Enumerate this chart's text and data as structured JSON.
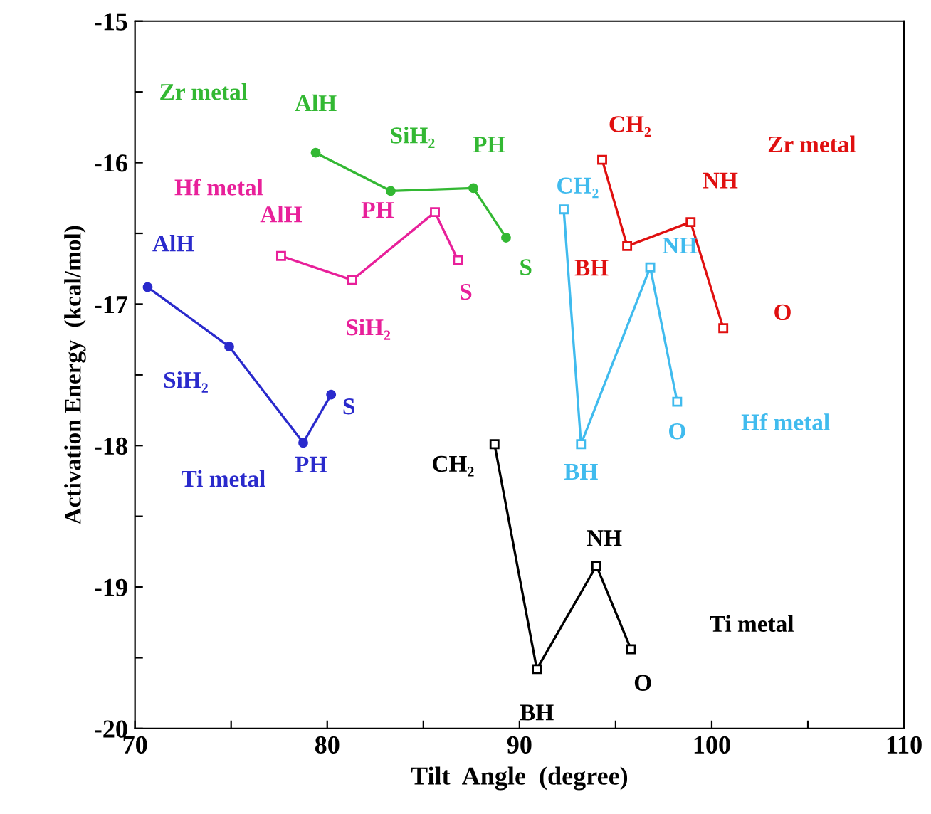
{
  "chart_data": {
    "type": "line",
    "xlabel": "Tilt  Angle  (degree)",
    "ylabel": "Activation Energy  (kcal/mol)",
    "xlim": [
      70,
      110
    ],
    "ylim": [
      -20,
      -15
    ],
    "xticks": [
      70,
      {
        "value": 75,
        "label": null
      },
      80,
      {
        "value": 85,
        "label": null
      },
      90,
      {
        "value": 95,
        "label": null
      },
      100,
      {
        "value": 105,
        "label": null
      },
      110
    ],
    "yticks": [
      -20,
      {
        "value": -19.5,
        "label": null
      },
      -19,
      {
        "value": -18.5,
        "label": null
      },
      -18,
      {
        "value": -17.5,
        "label": null
      },
      -17,
      {
        "value": -16.5,
        "label": null
      },
      -16,
      {
        "value": -15.5,
        "label": null
      },
      -15
    ],
    "grid": false,
    "legend": false,
    "series": [
      {
        "name": "Ti metal",
        "color": "#2a2acc",
        "marker": "circle",
        "x": [
          70.66,
          74.9,
          78.75,
          80.2
        ],
        "values": [
          -16.88,
          -17.3,
          -17.98,
          -17.64
        ]
      },
      {
        "name": "Zr metal",
        "color": "#33b833",
        "marker": "circle",
        "x": [
          79.4,
          83.3,
          87.6,
          89.3
        ],
        "values": [
          -15.93,
          -16.2,
          -16.18,
          -16.53
        ]
      },
      {
        "name": "Hf metal",
        "color": "#e8209a",
        "marker": "square",
        "x": [
          77.6,
          81.3,
          85.6,
          86.8
        ],
        "values": [
          -16.66,
          -16.83,
          -16.35,
          -16.69
        ]
      },
      {
        "name": "Zr metal",
        "color": "#e01010",
        "marker": "square",
        "x": [
          94.3,
          95.6,
          98.9,
          100.6
        ],
        "values": [
          -15.98,
          -16.59,
          -16.42,
          -17.17
        ]
      },
      {
        "name": "Hf metal",
        "color": "#40bbee",
        "marker": "square",
        "x": [
          92.3,
          93.2,
          96.8,
          98.2
        ],
        "values": [
          -16.33,
          -17.99,
          -16.74,
          -17.69
        ]
      },
      {
        "name": "Ti metal",
        "color": "#000000",
        "marker": "square",
        "x": [
          88.7,
          90.9,
          94.0,
          95.8
        ],
        "values": [
          -17.99,
          -19.58,
          -18.85,
          -19.44
        ]
      }
    ],
    "annotations": [
      {
        "text": "AlH",
        "x": 70.66,
        "y": -16.88
      },
      {
        "text": "SiH₂",
        "x": 74.9,
        "y": -17.3
      },
      {
        "text": "PH",
        "x": 78.75,
        "y": -17.98
      },
      {
        "text": "S",
        "x": 80.2,
        "y": -17.64
      },
      {
        "text": "AlH",
        "x": 79.4,
        "y": -15.93
      },
      {
        "text": "SiH₂",
        "x": 83.3,
        "y": -16.2
      },
      {
        "text": "PH",
        "x": 87.6,
        "y": -16.18
      },
      {
        "text": "S",
        "x": 89.3,
        "y": -16.53
      },
      {
        "text": "AlH",
        "x": 77.6,
        "y": -16.66
      },
      {
        "text": "SiH₂",
        "x": 81.3,
        "y": -16.83
      },
      {
        "text": "PH",
        "x": 85.6,
        "y": -16.35
      },
      {
        "text": "S",
        "x": 86.8,
        "y": -16.69
      },
      {
        "text": "CH₂",
        "x": 94.3,
        "y": -15.98
      },
      {
        "text": "BH",
        "x": 95.6,
        "y": -16.59
      },
      {
        "text": "NH",
        "x": 98.9,
        "y": -16.42
      },
      {
        "text": "O",
        "x": 100.6,
        "y": -17.17
      },
      {
        "text": "CH₂",
        "x": 92.3,
        "y": -16.33
      },
      {
        "text": "BH",
        "x": 93.2,
        "y": -17.99
      },
      {
        "text": "NH",
        "x": 96.8,
        "y": -16.74
      },
      {
        "text": "O",
        "x": 98.2,
        "y": -17.69
      },
      {
        "text": "CH₂",
        "x": 88.7,
        "y": -17.99
      },
      {
        "text": "BH",
        "x": 90.9,
        "y": -19.58
      },
      {
        "text": "NH",
        "x": 94.0,
        "y": -18.85
      },
      {
        "text": "O",
        "x": 95.8,
        "y": -19.44
      }
    ]
  }
}
